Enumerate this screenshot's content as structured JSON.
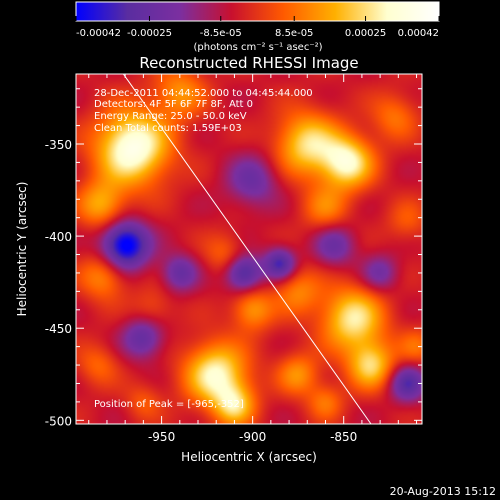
{
  "colorbar": {
    "colors": [
      "#0000ff",
      "#5a2da0",
      "#7b2fa0",
      "#c8102e",
      "#ff5a00",
      "#ffb000",
      "#ffffd0",
      "#ffffff"
    ],
    "min": -0.00042,
    "max": 0.00042,
    "tick_labels": [
      "-0.00042",
      "-0.00025",
      "-8.5e-05",
      "8.5e-05",
      "0.00025",
      "0.00042"
    ],
    "tick_values": [
      -0.00042,
      -0.00025,
      -8.5e-05,
      8.5e-05,
      0.00025,
      0.00042
    ],
    "unit_label": "(photons cm⁻² s⁻¹ asec⁻²)"
  },
  "chart_data": {
    "type": "heatmap",
    "title": "Reconstructed RHESSI Image",
    "xlabel": "Heliocentric X (arcsec)",
    "ylabel": "Heliocentric Y (arcsec)",
    "xlim": [
      -997,
      -807
    ],
    "ylim": [
      -502,
      -312
    ],
    "x_ticks": [
      -950,
      -900,
      -850
    ],
    "x_tick_labels": [
      "-950",
      "-900",
      "-850"
    ],
    "y_ticks": [
      -500,
      -450,
      -400,
      -350
    ],
    "y_tick_labels": [
      "-500",
      "-450",
      "-400",
      "-350"
    ],
    "annotations": [
      "28-Dec-2011 04:44:52.000 to 04:45:44.000",
      "Detectors: 4F 5F 6F 7F 8F, Att 0",
      "Energy Range: 25.0 - 50.0 keV",
      "Clean    Total counts: 1.59E+03",
      "Position of Peak = [-965,-352]"
    ],
    "peak": [
      -965,
      -352
    ],
    "limb_line": [
      [
        -971,
        -312
      ],
      [
        -835,
        -502
      ]
    ],
    "hot_sources": [
      {
        "x": -966,
        "y": -352,
        "r": 14,
        "v": 0.00042
      },
      {
        "x": -983,
        "y": -383,
        "r": 9,
        "v": 0.00022
      },
      {
        "x": -940,
        "y": -322,
        "r": 10,
        "v": 0.00018
      },
      {
        "x": -870,
        "y": -350,
        "r": 12,
        "v": 0.0003
      },
      {
        "x": -848,
        "y": -360,
        "r": 10,
        "v": 0.00035
      },
      {
        "x": -860,
        "y": -385,
        "r": 9,
        "v": 0.00015
      },
      {
        "x": -822,
        "y": -335,
        "r": 9,
        "v": 0.00014
      },
      {
        "x": -815,
        "y": -392,
        "r": 8,
        "v": 0.0001
      },
      {
        "x": -982,
        "y": -422,
        "r": 9,
        "v": 0.00018
      },
      {
        "x": -955,
        "y": -440,
        "r": 8,
        "v": 0.0001
      },
      {
        "x": -915,
        "y": -410,
        "r": 8,
        "v": 0.00012
      },
      {
        "x": -900,
        "y": -440,
        "r": 8,
        "v": 0.0002
      },
      {
        "x": -875,
        "y": -430,
        "r": 9,
        "v": 0.00016
      },
      {
        "x": -845,
        "y": -445,
        "r": 12,
        "v": 0.00032
      },
      {
        "x": -835,
        "y": -470,
        "r": 9,
        "v": 0.00028
      },
      {
        "x": -920,
        "y": -475,
        "r": 12,
        "v": 0.00035
      },
      {
        "x": -910,
        "y": -492,
        "r": 8,
        "v": 0.00025
      },
      {
        "x": -875,
        "y": -475,
        "r": 8,
        "v": 0.00018
      },
      {
        "x": -860,
        "y": -490,
        "r": 7,
        "v": 0.00014
      },
      {
        "x": -985,
        "y": -470,
        "r": 8,
        "v": 0.00012
      },
      {
        "x": -960,
        "y": -490,
        "r": 7,
        "v": 0.0001
      },
      {
        "x": -810,
        "y": -460,
        "r": 7,
        "v": 0.00012
      }
    ],
    "cold_sources": [
      {
        "x": -970,
        "y": -405,
        "r": 9,
        "v": -0.00042
      },
      {
        "x": -905,
        "y": -420,
        "r": 7,
        "v": -0.0003
      },
      {
        "x": -885,
        "y": -415,
        "r": 6,
        "v": -0.00028
      },
      {
        "x": -940,
        "y": -420,
        "r": 7,
        "v": -0.0002
      },
      {
        "x": -960,
        "y": -455,
        "r": 8,
        "v": -0.00022
      },
      {
        "x": -900,
        "y": -370,
        "r": 10,
        "v": -0.00018
      },
      {
        "x": -855,
        "y": -405,
        "r": 8,
        "v": -0.00018
      },
      {
        "x": -815,
        "y": -480,
        "r": 7,
        "v": -0.00025
      },
      {
        "x": -830,
        "y": -420,
        "r": 7,
        "v": -0.00016
      }
    ]
  },
  "timestamp": "20-Aug-2013 15:12"
}
